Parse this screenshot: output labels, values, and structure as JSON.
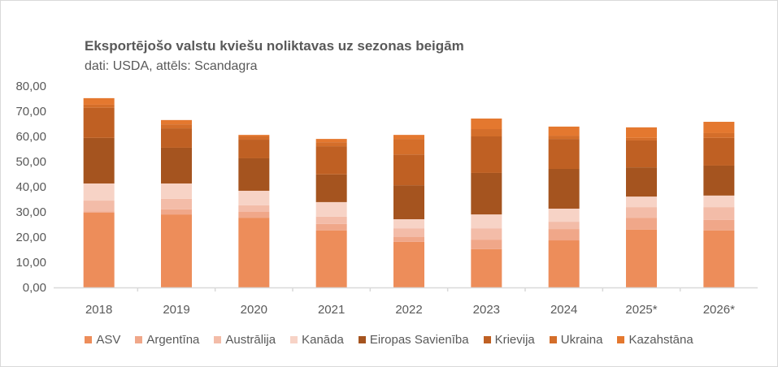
{
  "chart_data": {
    "type": "bar",
    "stacked": true,
    "title": "Eksportējošo valstu kviešu noliktavas uz sezonas beigām",
    "subtitle": "dati: USDA, attēls: Scandagra",
    "xlabel": "",
    "ylabel": "",
    "ylim": [
      0,
      80
    ],
    "yticks": [
      "0,00",
      "10,00",
      "20,00",
      "30,00",
      "40,00",
      "50,00",
      "60,00",
      "70,00",
      "80,00"
    ],
    "grid": false,
    "legend_position": "bottom",
    "categories": [
      "2018",
      "2019",
      "2020",
      "2021",
      "2022",
      "2023",
      "2024",
      "2025*",
      "2026*"
    ],
    "series": [
      {
        "name": "ASV",
        "color": "#ED8D5A",
        "values": [
          29.7,
          29.0,
          27.7,
          22.6,
          18.1,
          15.2,
          18.7,
          23.0,
          22.6
        ]
      },
      {
        "name": "Argentīna",
        "color": "#F0A789",
        "values": [
          0.5,
          2.0,
          2.3,
          2.6,
          1.9,
          3.8,
          4.5,
          4.7,
          4.2
        ]
      },
      {
        "name": "Austrālija",
        "color": "#F3BCA8",
        "values": [
          4.3,
          4.2,
          2.6,
          2.9,
          3.5,
          4.5,
          2.9,
          4.2,
          5.1
        ]
      },
      {
        "name": "Kanāda",
        "color": "#F7D3C6",
        "values": [
          6.8,
          6.1,
          5.8,
          5.8,
          3.6,
          5.5,
          5.2,
          4.2,
          4.6
        ]
      },
      {
        "name": "Eiropas Savienība",
        "color": "#A5541F",
        "values": [
          18.1,
          14.2,
          12.9,
          11.0,
          13.5,
          16.5,
          15.8,
          11.6,
          11.9
        ]
      },
      {
        "name": "Krievija",
        "color": "#BF6023",
        "values": [
          12.0,
          7.7,
          7.4,
          11.2,
          12.2,
          14.5,
          11.9,
          10.7,
          11.0
        ]
      },
      {
        "name": "Ukraina",
        "color": "#D46E2A",
        "values": [
          1.2,
          1.6,
          1.3,
          1.6,
          6.2,
          2.9,
          1.3,
          1.0,
          1.9
        ]
      },
      {
        "name": "Kazahstāna",
        "color": "#E4782F",
        "values": [
          2.6,
          1.7,
          0.6,
          1.3,
          1.6,
          4.2,
          3.6,
          4.2,
          4.5
        ]
      }
    ]
  }
}
